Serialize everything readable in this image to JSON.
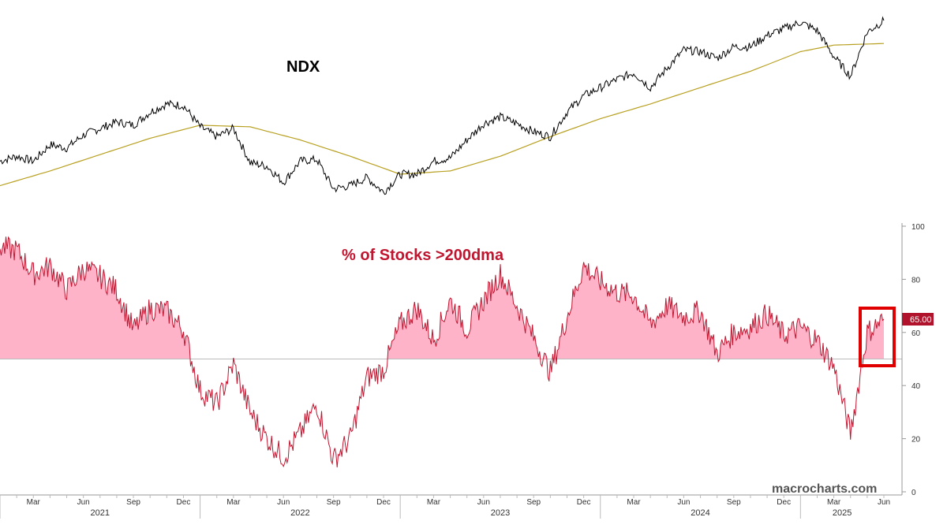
{
  "chart_data": [
    {
      "type": "line",
      "title": "NDX",
      "series": [
        {
          "name": "",
          "color": "#000000",
          "x": [
            "2021-01",
            "2021-02",
            "2021-03",
            "2021-04",
            "2021-05",
            "2021-06",
            "2021-07",
            "2021-08",
            "2021-09",
            "2021-10",
            "2021-11",
            "2021-12",
            "2022-01",
            "2022-02",
            "2022-03",
            "2022-04",
            "2022-05",
            "2022-06",
            "2022-07",
            "2022-08",
            "2022-09",
            "2022-10",
            "2022-11",
            "2022-12",
            "2023-01",
            "2023-02",
            "2023-03",
            "2023-04",
            "2023-05",
            "2023-06",
            "2023-07",
            "2023-08",
            "2023-09",
            "2023-10",
            "2023-11",
            "2023-12",
            "2024-01",
            "2024-02",
            "2024-03",
            "2024-04",
            "2024-05",
            "2024-06",
            "2024-07",
            "2024-08",
            "2024-09",
            "2024-10",
            "2024-11",
            "2024-12",
            "2025-01",
            "2025-02",
            "2025-03",
            "2025-04",
            "2025-05",
            "2025-06"
          ],
          "y": [
            12900,
            13200,
            12900,
            13900,
            13700,
            14500,
            14900,
            15300,
            15100,
            15900,
            16400,
            16300,
            15000,
            14400,
            14900,
            12800,
            12600,
            11600,
            12900,
            13000,
            11200,
            11400,
            11900,
            11000,
            12100,
            12100,
            12900,
            13100,
            14200,
            15200,
            15600,
            15200,
            14700,
            14400,
            15900,
            16900,
            17400,
            17900,
            18300,
            17400,
            18600,
            19700,
            19600,
            19200,
            19900,
            19900,
            20600,
            21000,
            21400,
            20900,
            19300,
            18100,
            20800,
            21500
          ]
        },
        {
          "name": "",
          "color": "#b8a020",
          "x": [
            "2021-01",
            "2021-04",
            "2021-07",
            "2021-10",
            "2022-01",
            "2022-04",
            "2022-07",
            "2022-10",
            "2023-01",
            "2023-04",
            "2023-07",
            "2023-10",
            "2024-01",
            "2024-04",
            "2024-07",
            "2024-10",
            "2025-01",
            "2025-03",
            "2025-06"
          ],
          "y": [
            11400,
            12300,
            13300,
            14300,
            15100,
            15000,
            14200,
            13200,
            12100,
            12300,
            13200,
            14400,
            15500,
            16400,
            17400,
            18400,
            19600,
            20000,
            20100
          ]
        }
      ]
    },
    {
      "type": "area",
      "title": "% of Stocks >200dma",
      "baseline": 50,
      "ylim": [
        0,
        100
      ],
      "yticks": [
        0,
        20,
        40,
        60,
        80,
        100
      ],
      "last_value_label": "65.00",
      "series": [
        {
          "name": "",
          "color": "#c0152f",
          "fill": "#ffb3c9",
          "x": [
            "2021-01",
            "2021-02",
            "2021-03",
            "2021-04",
            "2021-05",
            "2021-06",
            "2021-07",
            "2021-08",
            "2021-09",
            "2021-10",
            "2021-11",
            "2021-12",
            "2022-01",
            "2022-02",
            "2022-03",
            "2022-04",
            "2022-05",
            "2022-06",
            "2022-07",
            "2022-08",
            "2022-09",
            "2022-10",
            "2022-11",
            "2022-12",
            "2023-01",
            "2023-02",
            "2023-03",
            "2023-04",
            "2023-05",
            "2023-06",
            "2023-07",
            "2023-08",
            "2023-09",
            "2023-10",
            "2023-11",
            "2023-12",
            "2024-01",
            "2024-02",
            "2024-03",
            "2024-04",
            "2024-05",
            "2024-06",
            "2024-07",
            "2024-08",
            "2024-09",
            "2024-10",
            "2024-11",
            "2024-12",
            "2025-01",
            "2025-02",
            "2025-03",
            "2025-04",
            "2025-05",
            "2025-06"
          ],
          "y": [
            92,
            91,
            82,
            85,
            76,
            84,
            81,
            76,
            61,
            69,
            68,
            61,
            38,
            33,
            48,
            30,
            20,
            13,
            22,
            33,
            12,
            20,
            43,
            46,
            63,
            69,
            57,
            72,
            61,
            72,
            82,
            70,
            58,
            45,
            66,
            85,
            79,
            75,
            74,
            63,
            70,
            66,
            68,
            52,
            60,
            62,
            67,
            59,
            62,
            57,
            47,
            22,
            60,
            65
          ]
        }
      ],
      "xaxis": {
        "months": [
          "Mar",
          "Jun",
          "Sep",
          "Dec",
          "Mar",
          "Jun",
          "Sep",
          "Dec",
          "Mar",
          "Jun",
          "Sep",
          "Dec",
          "Mar",
          "Jun",
          "Sep",
          "Dec",
          "Mar",
          "Jun"
        ],
        "month_dates": [
          "2021-03",
          "2021-06",
          "2021-09",
          "2021-12",
          "2022-03",
          "2022-06",
          "2022-09",
          "2022-12",
          "2023-03",
          "2023-06",
          "2023-09",
          "2023-12",
          "2024-03",
          "2024-06",
          "2024-09",
          "2024-12",
          "2025-03",
          "2025-06"
        ],
        "years": [
          "2021",
          "2022",
          "2023",
          "2024",
          "2025"
        ]
      }
    }
  ],
  "watermark": "macrocharts.com"
}
